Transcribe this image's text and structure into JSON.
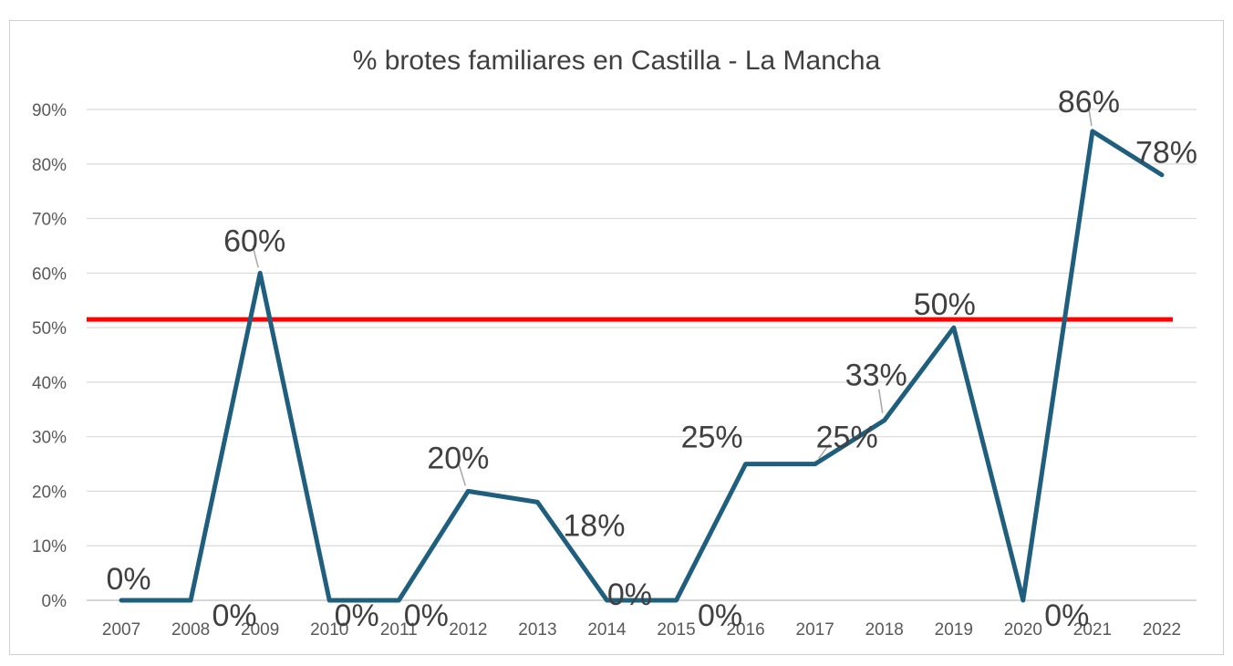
{
  "chart_data": {
    "type": "line",
    "title": "% brotes familiares en Castilla - La Mancha",
    "xlabel": "",
    "ylabel": "",
    "categories": [
      "2007",
      "2008",
      "2009",
      "2010",
      "2011",
      "2012",
      "2013",
      "2014",
      "2015",
      "2016",
      "2017",
      "2018",
      "2019",
      "2020",
      "2021",
      "2022"
    ],
    "series": [
      {
        "values": [
          0,
          0,
          60,
          0,
          0,
          20,
          18,
          0,
          0,
          25,
          25,
          33,
          50,
          0,
          86,
          78
        ],
        "data_labels": [
          "0%",
          "0%",
          "60%",
          "0%",
          "0%",
          "20%",
          "18%",
          "0%",
          "0%",
          "25%",
          "25%",
          "33%",
          "50%",
          "0%",
          "86%",
          "78%"
        ],
        "color": "#1f5f7d"
      }
    ],
    "reference_line": {
      "value": 51.5,
      "color": "#ff0000"
    },
    "ylim": [
      0,
      90
    ],
    "yticks": [
      0,
      10,
      20,
      30,
      40,
      50,
      60,
      70,
      80,
      90
    ],
    "ytick_labels": [
      "0%",
      "10%",
      "20%",
      "30%",
      "40%",
      "50%",
      "60%",
      "70%",
      "80%",
      "90%"
    ],
    "grid": true,
    "legend": "none"
  }
}
